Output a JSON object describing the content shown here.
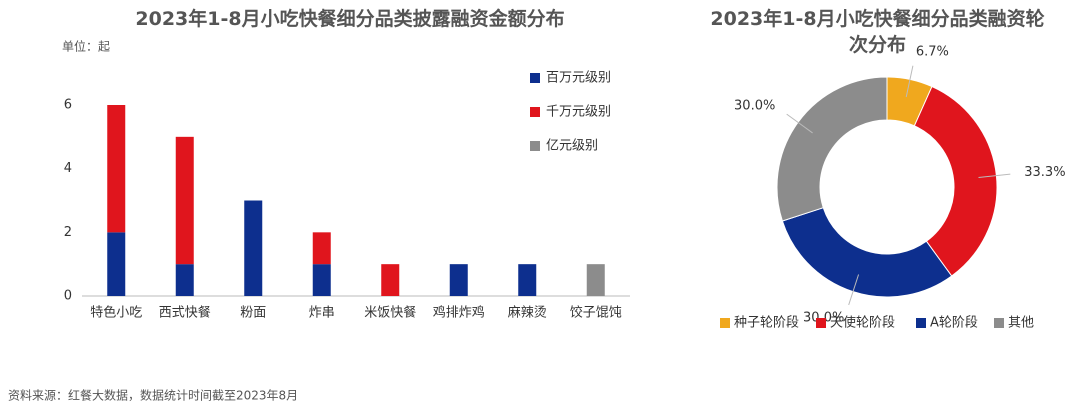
{
  "chart_data": [
    {
      "type": "bar",
      "title": "2023年1-8月小吃快餐细分品类披露融资金额分布",
      "y_unit_label": "单位：起",
      "categories": [
        "特色小吃",
        "西式快餐",
        "粉面",
        "炸串",
        "米饭快餐",
        "鸡排炸鸡",
        "麻辣烫",
        "饺子馄饨"
      ],
      "stacked": true,
      "series": [
        {
          "name": "百万元级别",
          "color": "#0d2f8e",
          "values": [
            2,
            1,
            3,
            1,
            0,
            1,
            1,
            0
          ]
        },
        {
          "name": "千万元级别",
          "color": "#e0151d",
          "values": [
            4,
            4,
            0,
            1,
            1,
            0,
            0,
            0
          ]
        },
        {
          "name": "亿元级别",
          "color": "#8c8c8c",
          "values": [
            0,
            0,
            0,
            0,
            0,
            0,
            0,
            1
          ]
        }
      ],
      "ylim": [
        0,
        6
      ],
      "yticks": [
        0,
        2,
        4,
        6
      ],
      "grid": false,
      "legend": "top-right"
    },
    {
      "type": "donut",
      "title": "2023年1-8月小吃快餐细分品类融资轮次分布",
      "categories": [
        "种子轮阶段",
        "天使轮阶段",
        "A轮阶段",
        "其他"
      ],
      "values": [
        6.7,
        33.3,
        30.0,
        30.0
      ],
      "value_labels": [
        "6.7%",
        "33.3%",
        "30.0%",
        "30.0%"
      ],
      "colors": [
        "#f0a81e",
        "#e0151d",
        "#0d2f8e",
        "#8c8c8c"
      ],
      "legend": "bottom"
    }
  ],
  "source": "资料来源：红餐大数据，数据统计时间截至2023年8月"
}
